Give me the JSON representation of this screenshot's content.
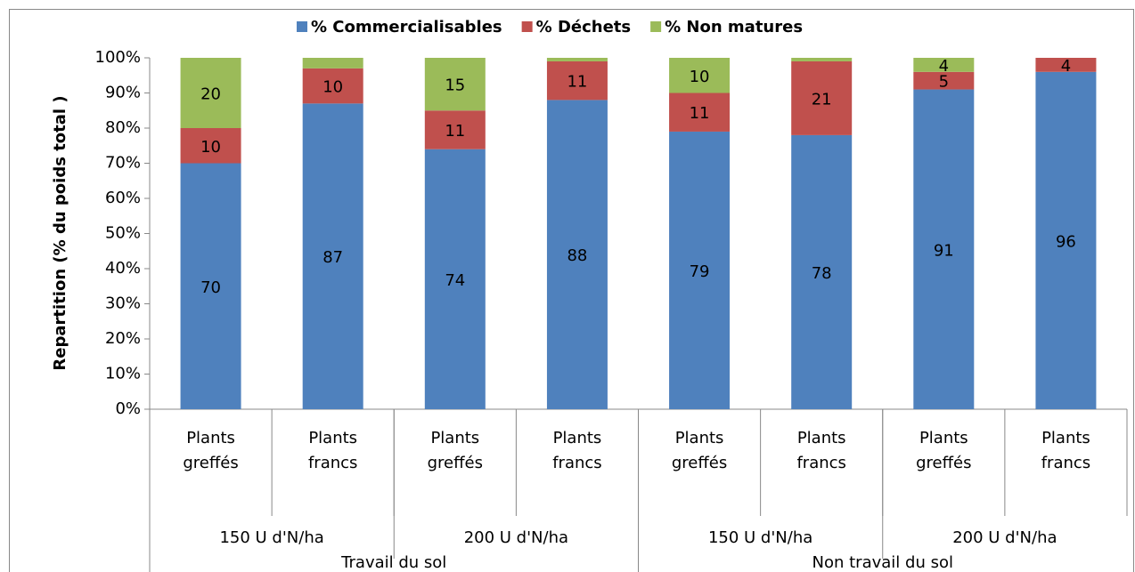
{
  "chart_data": {
    "type": "stacked_bar",
    "y_label": "Repartition  (% du poids total )",
    "categories": [
      [
        "Plants",
        "greffés"
      ],
      [
        "Plants",
        "francs"
      ],
      [
        "Plants",
        "greffés"
      ],
      [
        "Plants",
        "francs"
      ],
      [
        "Plants",
        "greffés"
      ],
      [
        "Plants",
        "francs"
      ],
      [
        "Plants",
        "greffés"
      ],
      [
        "Plants",
        "francs"
      ]
    ],
    "group_levels": [
      [
        "150 U d'N/ha",
        "200 U d'N/ha",
        "150 U d'N/ha",
        "200 U d'N/ha"
      ],
      [
        "Travail du sol",
        "Non travail du sol"
      ]
    ],
    "series": [
      {
        "name": "% Commercialisables",
        "color": "#4f81bd",
        "values": [
          70,
          87,
          74,
          88,
          79,
          78,
          91,
          96
        ]
      },
      {
        "name": "% Déchets",
        "color": "#c0504d",
        "values": [
          10,
          10,
          11,
          11,
          11,
          21,
          5,
          4
        ]
      },
      {
        "name": "% Non matures",
        "color": "#9bbb59",
        "values": [
          20,
          3,
          15,
          1,
          10,
          1,
          4,
          0
        ],
        "value_labels": [
          "20",
          null,
          "15",
          null,
          "10",
          null,
          "4",
          null
        ]
      }
    ],
    "ylim": [
      0,
      100
    ],
    "yticks": [
      {
        "value": 0,
        "label": "0%"
      },
      {
        "value": 10,
        "label": "10%"
      },
      {
        "value": 20,
        "label": "20%"
      },
      {
        "value": 30,
        "label": "30%"
      },
      {
        "value": 40,
        "label": "40%"
      },
      {
        "value": 50,
        "label": "50%"
      },
      {
        "value": 60,
        "label": "60%"
      },
      {
        "value": 70,
        "label": "70%"
      },
      {
        "value": 80,
        "label": "80%"
      },
      {
        "value": 90,
        "label": "90%"
      },
      {
        "value": 100,
        "label": "100%"
      }
    ],
    "legend": "top"
  }
}
